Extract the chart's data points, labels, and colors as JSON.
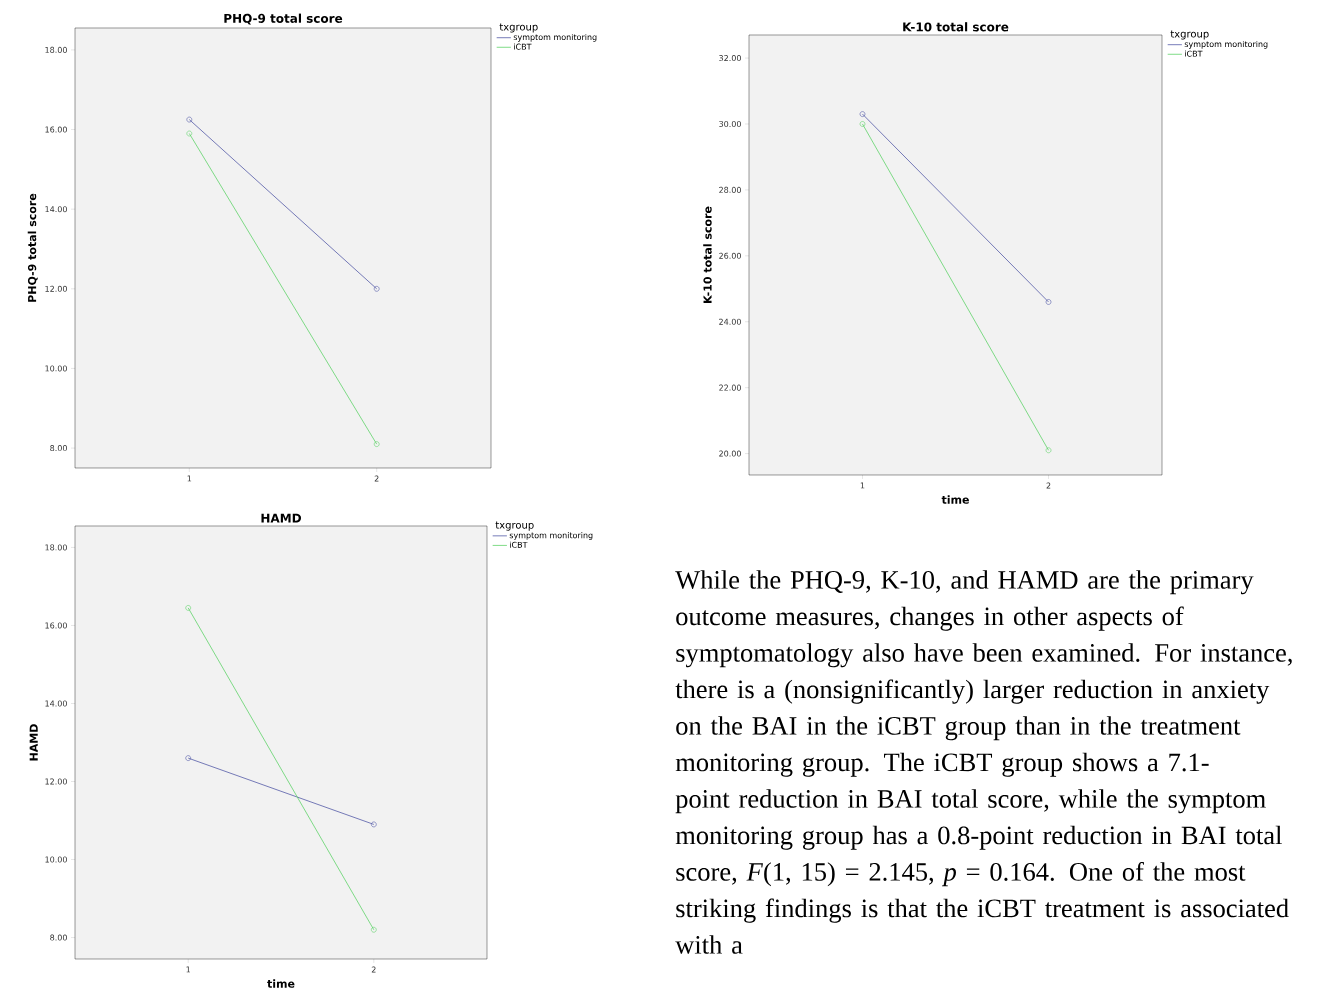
{
  "chart_data": [
    {
      "type": "line",
      "title": "PHQ-9 total score",
      "ylabel": "PHQ-9 total score",
      "legend_title": "txgroup",
      "categories": [
        "1",
        "2"
      ],
      "series": [
        {
          "name": "symptom monitoring",
          "color": "#545aa7",
          "values": [
            16.25,
            12.0
          ]
        },
        {
          "name": "iCBT",
          "color": "#5fd36a",
          "values": [
            15.9,
            8.1
          ]
        }
      ],
      "ylim": [
        7.5,
        18.55
      ],
      "yticks": [
        {
          "value": 8,
          "label": "8.00"
        },
        {
          "value": 10,
          "label": "10.00"
        },
        {
          "value": 12,
          "label": "12.00"
        },
        {
          "value": 14,
          "label": "14.00"
        },
        {
          "value": 16,
          "label": "16.00"
        },
        {
          "value": 18,
          "label": "18.00"
        }
      ],
      "legend": "right",
      "marker": "circle",
      "line_style": "solid"
    },
    {
      "type": "line",
      "title": "K-10 total score",
      "xlabel": "time",
      "ylabel": "K-10 total score",
      "legend_title": "txgroup",
      "categories": [
        "1",
        "2"
      ],
      "series": [
        {
          "name": "symptom monitoring",
          "color": "#545aa7",
          "values": [
            30.3,
            24.6
          ]
        },
        {
          "name": "iCBT",
          "color": "#5fd36a",
          "values": [
            30.0,
            20.1
          ]
        }
      ],
      "ylim": [
        19.35,
        32.7
      ],
      "yticks": [
        {
          "value": 20,
          "label": "20.00"
        },
        {
          "value": 22,
          "label": "22.00"
        },
        {
          "value": 24,
          "label": "24.00"
        },
        {
          "value": 26,
          "label": "26.00"
        },
        {
          "value": 28,
          "label": "28.00"
        },
        {
          "value": 30,
          "label": "30.00"
        },
        {
          "value": 32,
          "label": "32.00"
        }
      ],
      "legend": "right",
      "marker": "circle",
      "line_style": "solid"
    },
    {
      "type": "line",
      "title": "HAMD",
      "xlabel": "time",
      "ylabel": "HAMD",
      "legend_title": "txgroup",
      "categories": [
        "1",
        "2"
      ],
      "series": [
        {
          "name": "symptom monitoring",
          "color": "#545aa7",
          "values": [
            12.6,
            10.9
          ]
        },
        {
          "name": "iCBT",
          "color": "#5fd36a",
          "values": [
            16.45,
            8.2
          ]
        }
      ],
      "ylim": [
        7.45,
        18.55
      ],
      "yticks": [
        {
          "value": 8,
          "label": "8.00"
        },
        {
          "value": 10,
          "label": "10.00"
        },
        {
          "value": 12,
          "label": "12.00"
        },
        {
          "value": 14,
          "label": "14.00"
        },
        {
          "value": 16,
          "label": "16.00"
        },
        {
          "value": 18,
          "label": "18.00"
        }
      ],
      "legend": "right",
      "marker": "circle",
      "line_style": "solid"
    },
    {
      "type": "other",
      "annotations": [
        "While the PHQ-9, K-10, and HAMD are the primary outcome measures, changes in other aspects of symptomatology also have been examined. For instance, there is a (nonsignificantly) larger reduction in anxiety on the BAI in the iCBT group than in the treatment monitoring group. The iCBT group shows a 7.1-point reduction in BAI total score, while the symptom monitoring group has a 0.8-point reduction in BAI total score, *F*(1, 15) = 2.145, *p* = 0.164. One of the most striking findings is that the iCBT treatment is associated with a"
      ]
    }
  ]
}
